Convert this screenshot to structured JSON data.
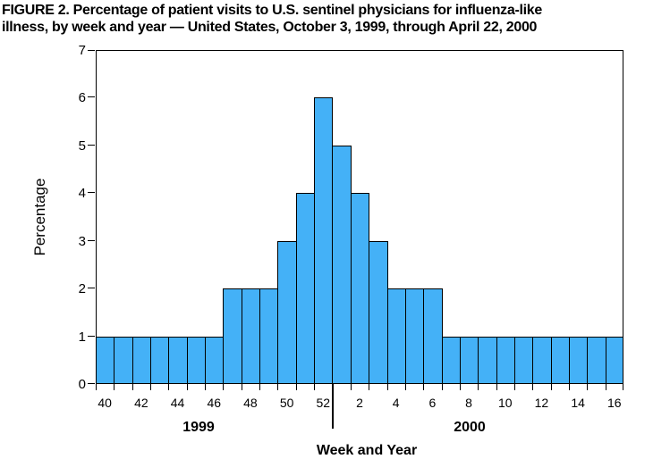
{
  "title": {
    "line1": "FIGURE 2. Percentage of patient visits to U.S. sentinel physicians for influenza-like",
    "line2": "illness, by week and year — United States, October 3, 1999, through April 22, 2000"
  },
  "chart_data": {
    "type": "bar",
    "title": "FIGURE 2. Percentage of patient visits to U.S. sentinel physicians for influenza-like illness, by week and year — United States, October 3, 1999, through April 22, 2000",
    "xlabel": "Week and Year",
    "ylabel": "Percentage",
    "ylim": [
      0,
      7
    ],
    "yticks": [
      0,
      1,
      2,
      3,
      4,
      5,
      6,
      7
    ],
    "categories": [
      "40",
      "41",
      "42",
      "43",
      "44",
      "45",
      "46",
      "47",
      "48",
      "49",
      "50",
      "51",
      "52",
      "1",
      "2",
      "3",
      "4",
      "5",
      "6",
      "7",
      "8",
      "9",
      "10",
      "11",
      "12",
      "13",
      "14",
      "15",
      "16"
    ],
    "values": [
      1,
      1,
      1,
      1,
      1,
      1,
      1,
      2,
      2,
      2,
      3,
      4,
      6,
      5,
      4,
      3,
      2,
      2,
      2,
      1,
      1,
      1,
      1,
      1,
      1,
      1,
      1,
      1,
      1
    ],
    "x_labeled_categories": [
      "40",
      "42",
      "44",
      "46",
      "48",
      "50",
      "52",
      "2",
      "4",
      "6",
      "8",
      "10",
      "12",
      "14",
      "16"
    ],
    "groups": [
      {
        "label": "1999",
        "count": 13
      },
      {
        "label": "2000",
        "count": 16
      }
    ],
    "grid": false,
    "legend": "none",
    "bar_color": "#44B1F7",
    "bar_border_color": "#000000",
    "axis_color": "#000000"
  }
}
